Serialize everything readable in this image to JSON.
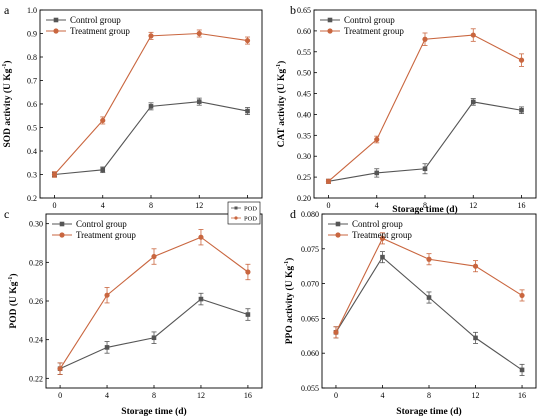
{
  "colors": {
    "control": "#555555",
    "treatment": "#c9663f",
    "axis": "#000000"
  },
  "chart_data": [
    {
      "type": "line",
      "panel_letter": "a",
      "ylabel": "SOD activity (U Kg",
      "ylabel_sup": "-1",
      "ylabel_close": ")",
      "xlabel": "",
      "x": [
        0,
        4,
        8,
        12,
        16
      ],
      "x_ticks": [
        "0",
        "4",
        "8",
        "12",
        "16"
      ],
      "ylim": [
        0.2,
        1.0
      ],
      "y_ticks": [
        "0.2",
        "0.3",
        "0.4",
        "0.5",
        "0.6",
        "0.7",
        "0.8",
        "0.9",
        "1.0"
      ],
      "legend_position": "top-left",
      "series": [
        {
          "name": "Control group",
          "key": "control",
          "values": [
            0.3,
            0.32,
            0.59,
            0.61,
            0.57
          ],
          "errors": [
            0.01,
            0.012,
            0.015,
            0.015,
            0.015
          ]
        },
        {
          "name": "Treatment group",
          "key": "treatment",
          "values": [
            0.3,
            0.53,
            0.89,
            0.9,
            0.87
          ],
          "errors": [
            0.012,
            0.015,
            0.015,
            0.015,
            0.015
          ]
        }
      ]
    },
    {
      "type": "line",
      "panel_letter": "b",
      "ylabel": "CAT activity (U Kg",
      "ylabel_sup": "-1",
      "ylabel_close": ")",
      "xlabel": "Storage time (d)",
      "x": [
        0,
        4,
        8,
        12,
        16
      ],
      "x_ticks": [
        "0",
        "4",
        "8",
        "12",
        "16"
      ],
      "ylim": [
        0.2,
        0.65
      ],
      "y_ticks": [
        "0.20",
        "0.25",
        "0.30",
        "0.35",
        "0.40",
        "0.45",
        "0.50",
        "0.55",
        "0.60",
        "0.65"
      ],
      "legend_position": "top-left",
      "series": [
        {
          "name": "Control group",
          "key": "control",
          "values": [
            0.24,
            0.26,
            0.27,
            0.43,
            0.41
          ],
          "errors": [
            0.005,
            0.01,
            0.012,
            0.008,
            0.008
          ]
        },
        {
          "name": "Treatment group",
          "key": "treatment",
          "values": [
            0.24,
            0.34,
            0.58,
            0.59,
            0.53
          ],
          "errors": [
            0.005,
            0.008,
            0.015,
            0.015,
            0.015
          ]
        }
      ]
    },
    {
      "type": "line",
      "panel_letter": "c",
      "ylabel": "POD (U Kg",
      "ylabel_sup": "-1",
      "ylabel_close": ")",
      "xlabel": "Storage time (d)",
      "x": [
        0,
        4,
        8,
        12,
        16
      ],
      "x_ticks": [
        "0",
        "4",
        "8",
        "12",
        "16"
      ],
      "ylim": [
        0.215,
        0.305
      ],
      "y_ticks": [
        "0.22",
        "0.24",
        "0.26",
        "0.28",
        "0.30"
      ],
      "legend_position": "top-left",
      "extra_legend": [
        "POD",
        "POD"
      ],
      "series": [
        {
          "name": "Control group",
          "key": "control",
          "values": [
            0.225,
            0.236,
            0.241,
            0.261,
            0.253
          ],
          "errors": [
            0.003,
            0.003,
            0.003,
            0.003,
            0.003
          ]
        },
        {
          "name": "Treatment group",
          "key": "treatment",
          "values": [
            0.225,
            0.263,
            0.283,
            0.293,
            0.275
          ],
          "errors": [
            0.003,
            0.004,
            0.004,
            0.004,
            0.004
          ]
        }
      ]
    },
    {
      "type": "line",
      "panel_letter": "d",
      "ylabel": "PPO activity (U Kg",
      "ylabel_sup": "-1",
      "ylabel_close": ")",
      "xlabel": "Storage time (d)",
      "x": [
        0,
        4,
        8,
        12,
        16
      ],
      "x_ticks": [
        "0",
        "4",
        "8",
        "12",
        "16"
      ],
      "ylim": [
        0.055,
        0.08
      ],
      "y_ticks": [
        "0.055",
        "0.060",
        "0.065",
        "0.070",
        "0.075",
        "0.080"
      ],
      "legend_position": "top-left",
      "series": [
        {
          "name": "Control group",
          "key": "control",
          "values": [
            0.063,
            0.0738,
            0.068,
            0.0622,
            0.0576
          ],
          "errors": [
            0.0008,
            0.0008,
            0.0008,
            0.0008,
            0.0008
          ]
        },
        {
          "name": "Treatment group",
          "key": "treatment",
          "values": [
            0.063,
            0.0765,
            0.0735,
            0.0725,
            0.0683
          ],
          "errors": [
            0.0008,
            0.0008,
            0.0008,
            0.0008,
            0.0008
          ]
        }
      ]
    }
  ]
}
